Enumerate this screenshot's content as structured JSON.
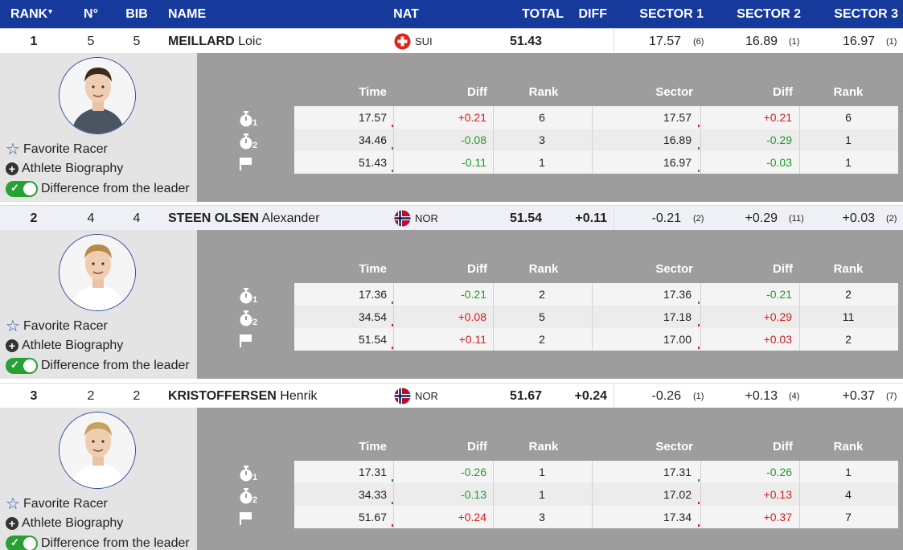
{
  "header": {
    "rank": "RANK",
    "sort_glyph": "▾",
    "no": "N°",
    "bib": "BIB",
    "name": "NAME",
    "nat": "NAT",
    "total": "TOTAL",
    "diff": "DIFF",
    "sector1": "SECTOR 1",
    "sector2": "SECTOR 2",
    "sector3": "SECTOR 3"
  },
  "detail_headers": {
    "time": "Time",
    "diff": "Diff",
    "rank": "Rank",
    "sector": "Sector",
    "sector_diff": "Diff",
    "sector_rank": "Rank"
  },
  "interval_subs": [
    "1",
    "2"
  ],
  "actions": {
    "favorite": "Favorite Racer",
    "biography": "Athlete Biography",
    "difference": "Difference from the leader"
  },
  "colors": {
    "header_bg": "#163a9b",
    "positive": "#d32020",
    "negative": "#1e9a27",
    "panel": "#9d9d9d"
  },
  "athletes": [
    {
      "rank": "1",
      "no": "5",
      "bib": "5",
      "surname": "MEILLARD",
      "firstname": "Loic",
      "nat": "SUI",
      "flag": "switzerland-flag",
      "total": "51.43",
      "diff": "",
      "s1": "17.57",
      "s1_rank": "(6)",
      "s2": "16.89",
      "s2_rank": "(1)",
      "s3": "16.97",
      "s3_rank": "(1)",
      "intermediates": [
        {
          "time": "17.57",
          "diff": "+0.21",
          "rank": "6",
          "sector": "17.57",
          "sdiff": "+0.21",
          "srank": "6"
        },
        {
          "time": "34.46",
          "diff": "-0.08",
          "rank": "3",
          "sector": "16.89",
          "sdiff": "-0.29",
          "srank": "1"
        },
        {
          "time": "51.43",
          "diff": "-0.11",
          "rank": "1",
          "sector": "16.97",
          "sdiff": "-0.03",
          "srank": "1"
        }
      ]
    },
    {
      "rank": "2",
      "no": "4",
      "bib": "4",
      "surname": "STEEN OLSEN",
      "firstname": "Alexander",
      "nat": "NOR",
      "flag": "norway-flag",
      "total": "51.54",
      "diff": "+0.11",
      "s1": "-0.21",
      "s1_rank": "(2)",
      "s2": "+0.29",
      "s2_rank": "(11)",
      "s3": "+0.03",
      "s3_rank": "(2)",
      "intermediates": [
        {
          "time": "17.36",
          "diff": "-0.21",
          "rank": "2",
          "sector": "17.36",
          "sdiff": "-0.21",
          "srank": "2"
        },
        {
          "time": "34.54",
          "diff": "+0.08",
          "rank": "5",
          "sector": "17.18",
          "sdiff": "+0.29",
          "srank": "11"
        },
        {
          "time": "51.54",
          "diff": "+0.11",
          "rank": "2",
          "sector": "17.00",
          "sdiff": "+0.03",
          "srank": "2"
        }
      ]
    },
    {
      "rank": "3",
      "no": "2",
      "bib": "2",
      "surname": "KRISTOFFERSEN",
      "firstname": "Henrik",
      "nat": "NOR",
      "flag": "norway-flag",
      "total": "51.67",
      "diff": "+0.24",
      "s1": "-0.26",
      "s1_rank": "(1)",
      "s2": "+0.13",
      "s2_rank": "(4)",
      "s3": "+0.37",
      "s3_rank": "(7)",
      "intermediates": [
        {
          "time": "17.31",
          "diff": "-0.26",
          "rank": "1",
          "sector": "17.31",
          "sdiff": "-0.26",
          "srank": "1"
        },
        {
          "time": "34.33",
          "diff": "-0.13",
          "rank": "1",
          "sector": "17.02",
          "sdiff": "+0.13",
          "srank": "4"
        },
        {
          "time": "51.67",
          "diff": "+0.24",
          "rank": "3",
          "sector": "17.34",
          "sdiff": "+0.37",
          "srank": "7"
        }
      ]
    }
  ]
}
